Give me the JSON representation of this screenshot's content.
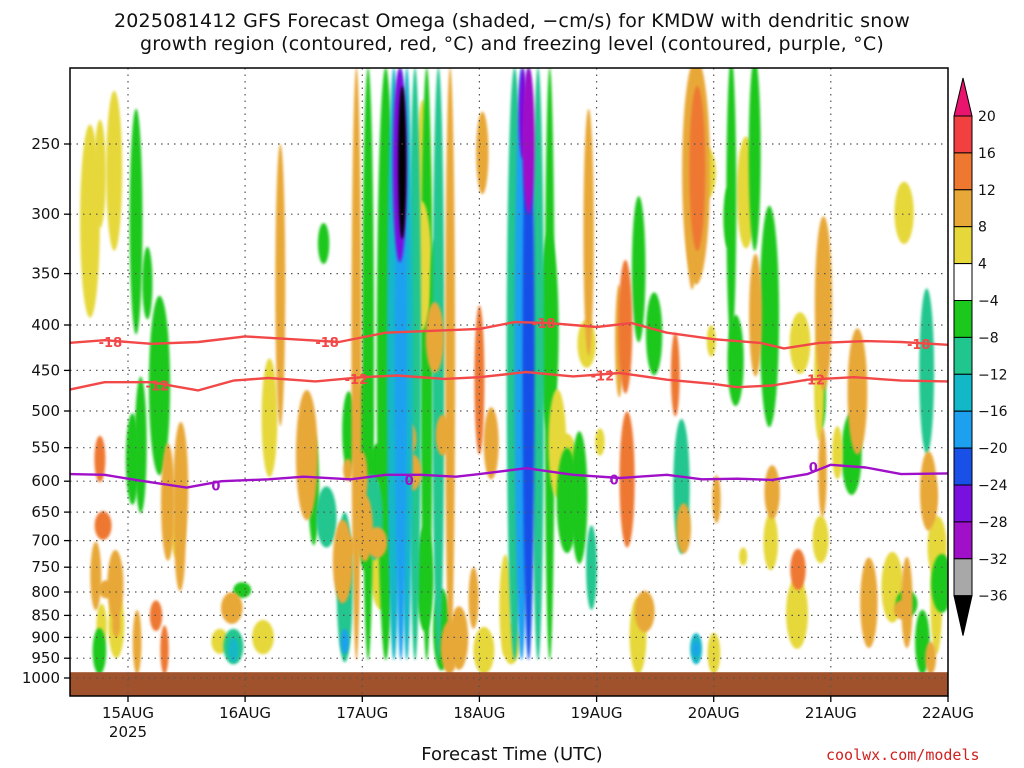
{
  "title": {
    "line1": "2025081412 GFS Forecast Omega (shaded, −cm/s) for KMDW with dendritic snow",
    "line2": "growth region (contoured, red, °C) and freezing level (contoured, purple, °C)"
  },
  "xlabel": "Forecast Time (UTC)",
  "credit": "coolwx.com/models",
  "chart_data": {
    "type": "heatmap",
    "title": "2025081412 GFS Forecast Omega (shaded, −cm/s) for KMDW",
    "xlabel": "Forecast Time (UTC)",
    "ylabel": "",
    "x_ticks": [
      {
        "day": 15,
        "label": "15AUG",
        "sublabel": "2025"
      },
      {
        "day": 16,
        "label": "16AUG"
      },
      {
        "day": 17,
        "label": "17AUG"
      },
      {
        "day": 18,
        "label": "18AUG"
      },
      {
        "day": 19,
        "label": "19AUG"
      },
      {
        "day": 20,
        "label": "20AUG"
      },
      {
        "day": 21,
        "label": "21AUG"
      },
      {
        "day": 22,
        "label": "22AUG"
      }
    ],
    "xlim": [
      14.5,
      22.0
    ],
    "y_ticks": [
      250,
      300,
      350,
      400,
      450,
      500,
      550,
      600,
      650,
      700,
      750,
      800,
      850,
      900,
      950,
      1000
    ],
    "ylim_hPa": [
      1025,
      200
    ],
    "y_scale": "log-pressure",
    "grid": true,
    "colorbar": {
      "labels": [
        "20",
        "16",
        "12",
        "8",
        "4",
        "−4",
        "−8",
        "−12",
        "−16",
        "−20",
        "−24",
        "−28",
        "−32",
        "−36"
      ],
      "colors": [
        "#e8146e",
        "#f24040",
        "#ee7830",
        "#e8a838",
        "#e6d83a",
        "#ffffff",
        "#1cc81c",
        "#20c68e",
        "#12b8c8",
        "#1ea0f0",
        "#1850e8",
        "#7a10e0",
        "#a010c8",
        "#a8a8a8",
        "#000000"
      ]
    },
    "contours": [
      {
        "label": "-18",
        "color": "#f24848",
        "points": [
          [
            14.5,
            419
          ],
          [
            14.8,
            416
          ],
          [
            15.2,
            420
          ],
          [
            15.6,
            418
          ],
          [
            16.0,
            412
          ],
          [
            16.4,
            415
          ],
          [
            16.8,
            418
          ],
          [
            17.2,
            408
          ],
          [
            17.6,
            406
          ],
          [
            18.0,
            404
          ],
          [
            18.3,
            397
          ],
          [
            18.6,
            398
          ],
          [
            19.0,
            402
          ],
          [
            19.3,
            398
          ],
          [
            19.6,
            408
          ],
          [
            20.0,
            415
          ],
          [
            20.4,
            419
          ],
          [
            20.6,
            425
          ],
          [
            20.9,
            419
          ],
          [
            21.3,
            417
          ],
          [
            21.6,
            418
          ],
          [
            22.0,
            421
          ]
        ],
        "label_at": [
          [
            14.85,
            418
          ],
          [
            16.7,
            418
          ],
          [
            18.55,
            398
          ],
          [
            21.75,
            420
          ]
        ]
      },
      {
        "label": "-12",
        "color": "#f24848",
        "points": [
          [
            14.5,
            473
          ],
          [
            14.8,
            464
          ],
          [
            15.2,
            464
          ],
          [
            15.6,
            474
          ],
          [
            15.9,
            462
          ],
          [
            16.2,
            459
          ],
          [
            16.6,
            463
          ],
          [
            17.0,
            458
          ],
          [
            17.3,
            456
          ],
          [
            17.7,
            460
          ],
          [
            18.0,
            458
          ],
          [
            18.4,
            452
          ],
          [
            18.8,
            457
          ],
          [
            19.2,
            453
          ],
          [
            19.6,
            461
          ],
          [
            20.0,
            466
          ],
          [
            20.2,
            470
          ],
          [
            20.5,
            468
          ],
          [
            20.8,
            461
          ],
          [
            21.2,
            458
          ],
          [
            21.6,
            462
          ],
          [
            22.0,
            463
          ]
        ],
        "label_at": [
          [
            15.25,
            468
          ],
          [
            16.95,
            460
          ],
          [
            19.05,
            456
          ],
          [
            20.85,
            461
          ]
        ]
      },
      {
        "label": "0",
        "color": "#a010c8",
        "points": [
          [
            14.5,
            589
          ],
          [
            14.8,
            590
          ],
          [
            15.1,
            599
          ],
          [
            15.5,
            610
          ],
          [
            15.8,
            600
          ],
          [
            16.2,
            597
          ],
          [
            16.5,
            593
          ],
          [
            16.9,
            597
          ],
          [
            17.2,
            590
          ],
          [
            17.5,
            590
          ],
          [
            17.8,
            593
          ],
          [
            18.0,
            589
          ],
          [
            18.4,
            580
          ],
          [
            18.8,
            590
          ],
          [
            19.2,
            595
          ],
          [
            19.6,
            590
          ],
          [
            19.9,
            597
          ],
          [
            20.2,
            596
          ],
          [
            20.5,
            598
          ],
          [
            20.8,
            589
          ],
          [
            21.0,
            575
          ],
          [
            21.3,
            579
          ],
          [
            21.6,
            589
          ],
          [
            22.0,
            588
          ]
        ],
        "label_at": [
          [
            15.75,
            607
          ],
          [
            17.4,
            598
          ],
          [
            19.15,
            597
          ],
          [
            20.85,
            578
          ]
        ]
      }
    ],
    "omega_features": [
      {
        "day": 17.3,
        "p_top": 210,
        "p_bot": 340,
        "value": -36
      },
      {
        "day": 17.33,
        "p_top": 200,
        "p_bot": 960,
        "value": -20
      },
      {
        "day": 18.35,
        "p_top": 200,
        "p_bot": 960,
        "value": -20
      },
      {
        "day": 18.4,
        "p_top": 200,
        "p_bot": 330,
        "value": -28
      },
      {
        "day": 19.85,
        "p_top": 200,
        "p_bot": 370,
        "value": 12
      },
      {
        "day": 16.85,
        "p_top": 650,
        "p_bot": 960,
        "value": -16
      },
      {
        "day": 15.9,
        "p_top": 880,
        "p_bot": 970,
        "value": -12
      },
      {
        "day": 19.85,
        "p_top": 890,
        "p_bot": 960,
        "value": -16
      }
    ],
    "surface": {
      "p_top": 985,
      "color": "#a0522d"
    }
  }
}
